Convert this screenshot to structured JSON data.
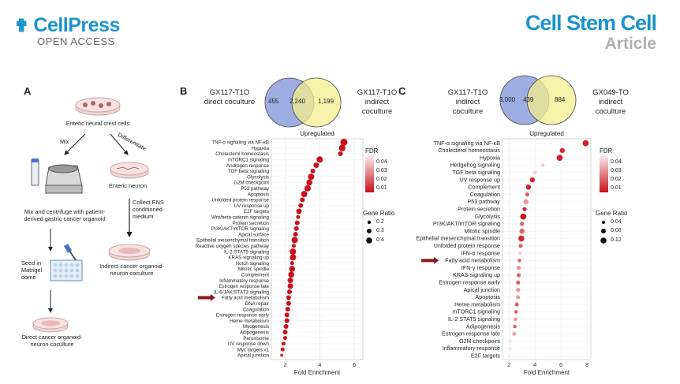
{
  "header": {
    "publisher": "CellPress",
    "open_access": "OPEN ACCESS",
    "journal": "Cell Stem Cell",
    "article_type": "Article"
  },
  "panel_a": {
    "label": "A",
    "enteric_cells": "Enteric neural crest cells",
    "mix": "Mix",
    "differentiate": "Differentiate",
    "enteric_neuron": "Enteric neuron",
    "mix_centrifuge": "Mix and centrifuge with patient-derived gastric cancer organoid",
    "collect": "Collect ENS conditioned medium",
    "seed": "Seed in Matrigel dome",
    "indirect": "Indirect cancer organoid-neuron coculture",
    "direct": "Direct cancer organoid-neuron coculture"
  },
  "panel_b": {
    "label": "B",
    "venn": {
      "left_label": "GX117-T1O direct coculture",
      "right_label": "GX117-T1O indirect coculture",
      "left_only": "455",
      "overlap": "2,240",
      "right_only": "1,199"
    },
    "legend": {
      "fdr_title": "FDR",
      "fdr_ticks": [
        "0.04",
        "0.03",
        "0.02",
        "0.01"
      ],
      "gr_title": "Gene Ratio",
      "gr_ticks": [
        "0.2",
        "0.3",
        "0.4"
      ]
    }
  },
  "panel_c": {
    "label": "C",
    "venn": {
      "left_label": "GX117-T1O indirect coculture",
      "right_label": "GX049-TO indirect coculture",
      "left_only": "3,000",
      "overlap": "439",
      "right_only": "884"
    },
    "legend": {
      "fdr_title": "FDR",
      "fdr_ticks": [
        "0.04",
        "0.03",
        "0.02",
        "0.01"
      ],
      "gr_title": "Gene Ratio",
      "gr_ticks": [
        "0.04",
        "0.08",
        "0.12"
      ]
    }
  },
  "chart_data": [
    {
      "type": "scatter",
      "id": "B",
      "title": "Upregulated",
      "xlabel": "Fold Enrichment",
      "ylabel": "",
      "xlim": [
        1.2,
        6.5
      ],
      "xticks": [
        2,
        4,
        6
      ],
      "highlight": "Fatty acid metabolism",
      "categories": [
        "TNF-α signaling via NF-κB",
        "Hypoxia",
        "Cholesterol homeostasis",
        "mTORC1 signaling",
        "Androgen response",
        "TGF beta signaling",
        "Glycolysis",
        "G2M checkpoint",
        "P53 pathway",
        "Apoptosis",
        "Unfolded protein response",
        "UV response up",
        "E2F targets",
        "Wnt/beta-catenin signaling",
        "Protein secretion",
        "PI3K/AKT/mTOR signaling",
        "Apical surface",
        "Epithelial mesenchymal transition",
        "Reactive oxygen species pathway",
        "IL-2 STAT5 signaling",
        "KRAS signaling up",
        "Notch signaling",
        "Mitotic spindle",
        "Complement",
        "Inflammatory response",
        "Estrogen response late",
        "IL-6/JAK/STAT3 signaling",
        "Fatty acid metabolism",
        "DNA repair",
        "Coagulation",
        "Estrogen response early",
        "Heme metabolism",
        "Myogenesis",
        "Adipogenesis",
        "Peroxisome",
        "UV response down",
        "Myc targets v1",
        "Apical junction"
      ],
      "fold_enrichment": [
        5.4,
        5.3,
        5.2,
        4.0,
        3.8,
        3.6,
        3.5,
        3.4,
        3.3,
        3.1,
        3.0,
        2.9,
        2.8,
        2.75,
        2.7,
        2.65,
        2.6,
        2.55,
        2.5,
        2.45,
        2.45,
        2.4,
        2.4,
        2.35,
        2.3,
        2.3,
        2.25,
        2.2,
        2.2,
        2.15,
        2.1,
        2.1,
        2.05,
        2.0,
        2.0,
        1.9,
        1.85,
        1.8
      ],
      "fdr": [
        0.005,
        0.005,
        0.005,
        0.005,
        0.005,
        0.005,
        0.005,
        0.005,
        0.005,
        0.005,
        0.005,
        0.005,
        0.005,
        0.005,
        0.005,
        0.005,
        0.005,
        0.005,
        0.005,
        0.005,
        0.005,
        0.005,
        0.005,
        0.005,
        0.005,
        0.005,
        0.005,
        0.005,
        0.005,
        0.005,
        0.005,
        0.005,
        0.005,
        0.005,
        0.006,
        0.006,
        0.006,
        0.01
      ],
      "gene_ratio": [
        0.45,
        0.42,
        0.3,
        0.4,
        0.35,
        0.3,
        0.4,
        0.38,
        0.4,
        0.4,
        0.3,
        0.3,
        0.35,
        0.25,
        0.3,
        0.3,
        0.3,
        0.4,
        0.25,
        0.4,
        0.4,
        0.25,
        0.38,
        0.38,
        0.35,
        0.35,
        0.3,
        0.3,
        0.3,
        0.3,
        0.3,
        0.3,
        0.3,
        0.3,
        0.25,
        0.25,
        0.25,
        0.2
      ]
    },
    {
      "type": "scatter",
      "id": "C",
      "title": "Upregulated",
      "xlabel": "Fold Enrichment",
      "ylabel": "",
      "xlim": [
        1.5,
        8.3
      ],
      "xticks": [
        2,
        4,
        6,
        8
      ],
      "highlight": "Fatty acid metabolism",
      "categories": [
        "TNF-α signaling via NF-κB",
        "Cholesterol homeostasis",
        "Hypoxia",
        "Hedgehog signaling",
        "TGF beta signaling",
        "UV response up",
        "Complement",
        "Coagulation",
        "P53 pathway",
        "Protein secretion",
        "Glycolysis",
        "PI3K/AKT/mTOR signaling",
        "Mitotic spindle",
        "Epithelial mesenchymal transition",
        "Unfolded protein response",
        "IFN-α response",
        "Fatty acid metabolism",
        "IFN-γ response",
        "KRAS signaling up",
        "Estrogen response early",
        "Apical junction",
        "Apoptosis",
        "Heme metabolism",
        "mTORC1 signaling",
        "IL-2 STAT5 signaling",
        "Adipogenesis",
        "Estrogen response late",
        "G2M checkpoint",
        "Inflammatory response",
        "E2F targets"
      ],
      "fold_enrichment": [
        7.9,
        6.1,
        5.9,
        4.6,
        4.0,
        3.8,
        3.5,
        3.4,
        3.3,
        3.2,
        3.1,
        3.0,
        3.0,
        2.95,
        2.9,
        2.85,
        2.8,
        2.75,
        2.75,
        2.7,
        2.7,
        2.7,
        2.6,
        2.55,
        2.5,
        2.45,
        2.4,
        2.1,
        2.1,
        2.0
      ],
      "fdr": [
        0.008,
        0.01,
        0.008,
        0.04,
        0.04,
        0.01,
        0.008,
        0.02,
        0.03,
        0.01,
        0.005,
        0.02,
        0.02,
        0.01,
        0.02,
        0.04,
        0.02,
        0.03,
        0.02,
        0.02,
        0.03,
        0.03,
        0.02,
        0.02,
        0.03,
        0.02,
        0.03,
        0.045,
        0.045,
        0.045
      ],
      "gene_ratio": [
        0.1,
        0.08,
        0.1,
        0.05,
        0.06,
        0.08,
        0.08,
        0.06,
        0.08,
        0.06,
        0.1,
        0.06,
        0.08,
        0.1,
        0.06,
        0.04,
        0.05,
        0.06,
        0.06,
        0.06,
        0.06,
        0.06,
        0.06,
        0.05,
        0.05,
        0.05,
        0.05,
        0.04,
        0.04,
        0.04
      ]
    }
  ]
}
